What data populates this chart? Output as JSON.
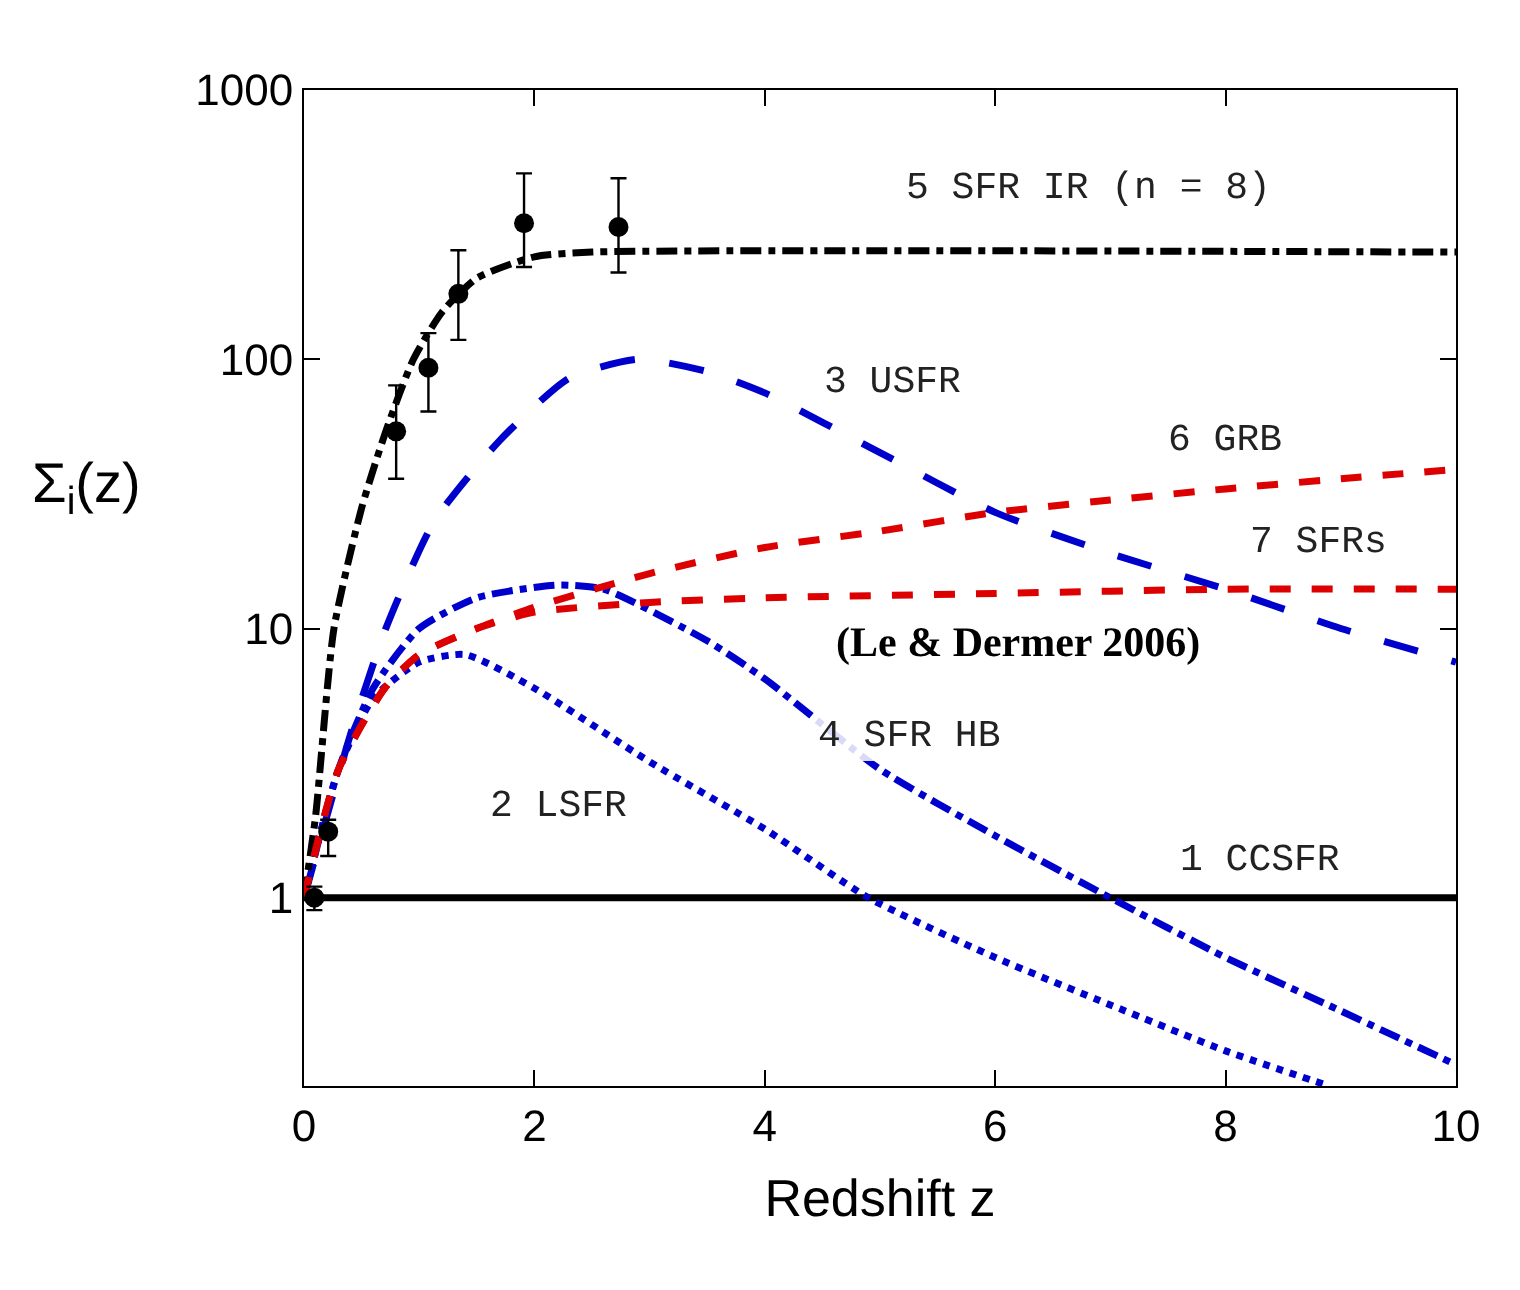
{
  "chart_data": {
    "type": "line",
    "xlabel": "Redshift z",
    "ylabel": "Σ$_{i}$(z)",
    "log": "y",
    "xlim": [
      0,
      10
    ],
    "xticks": [
      0,
      2,
      4,
      6,
      8,
      10
    ],
    "ylim": [
      0.2,
      1000
    ],
    "yticks": [
      1,
      10,
      100,
      1000
    ],
    "grid": false,
    "legend": false,
    "series": [
      {
        "name": "1 CCSFR",
        "color": "#000000",
        "line_style": "solid",
        "x": [
          0,
          10
        ],
        "values": [
          1,
          1
        ]
      },
      {
        "name": "2 LSFR",
        "color": "#0000cc",
        "line_style": "dotted",
        "x": [
          0,
          0.3,
          0.6,
          1,
          1.4,
          2,
          3,
          4,
          4.9,
          6,
          7,
          8,
          8.9
        ],
        "values": [
          1,
          3,
          5.5,
          7.5,
          8,
          6,
          3.2,
          1.8,
          1.0,
          0.6,
          0.4,
          0.27,
          0.2
        ]
      },
      {
        "name": "3 USFR",
        "color": "#0000cc",
        "line_style": "longdash",
        "x": [
          0,
          0.4,
          0.71,
          1.13,
          1.7,
          2.3,
          2.9,
          3.5,
          4,
          5,
          6,
          7,
          8,
          9,
          10
        ],
        "values": [
          1,
          4,
          10,
          25,
          50,
          85,
          100,
          90,
          75,
          45,
          27,
          19,
          14,
          10,
          7.5
        ]
      },
      {
        "name": "4 SFR HB",
        "color": "#0000cc",
        "line_style": "dashdot",
        "x": [
          0,
          0.3,
          0.6,
          1,
          1.5,
          2.2,
          2.6,
          3.5,
          4,
          5,
          6,
          7,
          8,
          9,
          10
        ],
        "values": [
          1,
          3,
          6,
          10,
          13,
          14.5,
          14,
          9,
          6.5,
          3,
          1.7,
          1.0,
          0.6,
          0.38,
          0.24
        ]
      },
      {
        "name": "5 SFR IR (n = 8)",
        "color": "#000000",
        "line_style": "dashdot",
        "x": [
          0,
          0.1,
          0.26,
          0.5,
          0.71,
          0.95,
          1.2,
          1.5,
          2,
          2.5,
          10
        ],
        "values": [
          1,
          2,
          10,
          28,
          54,
          100,
          150,
          200,
          240,
          250,
          250
        ]
      },
      {
        "name": "6 GRB",
        "color": "#dd0000",
        "line_style": "dashed",
        "x": [
          0,
          0.3,
          0.7,
          1,
          1.5,
          2,
          3,
          4,
          5,
          6,
          7,
          8,
          9,
          10
        ],
        "values": [
          1,
          3,
          6,
          8,
          10,
          12,
          16,
          20,
          23,
          27,
          30,
          33,
          36,
          39
        ]
      },
      {
        "name": "7 SFRs",
        "color": "#dd0000",
        "line_style": "dashed",
        "x": [
          0,
          0.3,
          0.7,
          1,
          1.5,
          2,
          3,
          4,
          6,
          8,
          10
        ],
        "values": [
          1,
          3,
          6,
          8,
          10,
          11.5,
          12.5,
          13,
          13.5,
          14,
          14
        ]
      },
      {
        "type": "scatter",
        "color": "#000000",
        "x": [
          0.09,
          0.21,
          0.8,
          1.08,
          1.34,
          1.91,
          2.73
        ],
        "values": [
          1.0,
          1.76,
          54,
          93,
          175,
          320,
          310
        ],
        "errors": [
          [
            0.9,
            1.1
          ],
          [
            1.43,
            1.95
          ],
          [
            36,
            80
          ],
          [
            64,
            125
          ],
          [
            118,
            254
          ],
          [
            220,
            490
          ],
          [
            210,
            470
          ]
        ]
      }
    ],
    "annotations": [
      "(Le & Dermer 2006)"
    ]
  }
}
